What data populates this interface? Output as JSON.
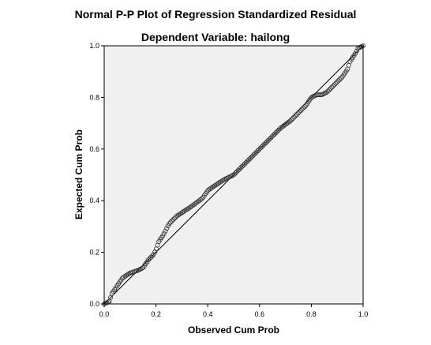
{
  "chart_data": {
    "type": "scatter",
    "title": "Normal P-P Plot of Regression Standardized Residual",
    "subtitle": "Dependent Variable: hailong",
    "xlabel": "Observed Cum Prob",
    "ylabel": "Expected Cum Prob",
    "xlim": [
      0,
      1
    ],
    "ylim": [
      0,
      1
    ],
    "xticks": [
      "0.0",
      "0.2",
      "0.4",
      "0.6",
      "0.8",
      "1.0"
    ],
    "yticks": [
      "0.0",
      "0.2",
      "0.4",
      "0.6",
      "0.8",
      "1.0"
    ],
    "reference_line": [
      [
        0,
        0
      ],
      [
        1,
        1
      ]
    ],
    "grid": false,
    "plot_background": "#f0f0f0",
    "marker": "open-circle",
    "curve": [
      [
        0.0,
        0.0
      ],
      [
        0.02,
        0.01
      ],
      [
        0.03,
        0.04
      ],
      [
        0.05,
        0.07
      ],
      [
        0.07,
        0.1
      ],
      [
        0.1,
        0.12
      ],
      [
        0.13,
        0.13
      ],
      [
        0.15,
        0.14
      ],
      [
        0.17,
        0.17
      ],
      [
        0.19,
        0.19
      ],
      [
        0.2,
        0.21
      ],
      [
        0.21,
        0.24
      ],
      [
        0.23,
        0.27
      ],
      [
        0.25,
        0.31
      ],
      [
        0.28,
        0.34
      ],
      [
        0.31,
        0.36
      ],
      [
        0.34,
        0.38
      ],
      [
        0.38,
        0.41
      ],
      [
        0.4,
        0.44
      ],
      [
        0.43,
        0.46
      ],
      [
        0.46,
        0.48
      ],
      [
        0.5,
        0.5
      ],
      [
        0.52,
        0.52
      ],
      [
        0.56,
        0.56
      ],
      [
        0.6,
        0.6
      ],
      [
        0.64,
        0.64
      ],
      [
        0.68,
        0.68
      ],
      [
        0.72,
        0.71
      ],
      [
        0.75,
        0.74
      ],
      [
        0.78,
        0.77
      ],
      [
        0.8,
        0.8
      ],
      [
        0.82,
        0.81
      ],
      [
        0.84,
        0.81
      ],
      [
        0.86,
        0.82
      ],
      [
        0.88,
        0.84
      ],
      [
        0.9,
        0.86
      ],
      [
        0.92,
        0.88
      ],
      [
        0.94,
        0.91
      ],
      [
        0.95,
        0.94
      ],
      [
        0.97,
        0.97
      ],
      [
        0.98,
        0.99
      ],
      [
        1.0,
        1.0
      ]
    ],
    "n_points": 200
  }
}
